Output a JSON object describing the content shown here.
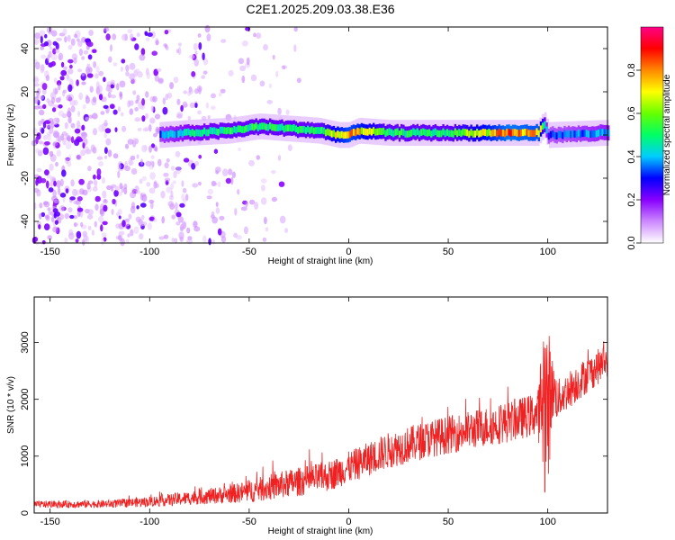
{
  "title": "C2E1.2025.209.03.38.E36",
  "chart_data": [
    {
      "type": "heatmap",
      "title": "",
      "xlabel": "Height of straight line (km)",
      "ylabel": "Frequency (Hz)",
      "xlim": [
        -158,
        130
      ],
      "ylim": [
        -50,
        50
      ],
      "x_ticks": [
        -150,
        -100,
        -50,
        0,
        50,
        100
      ],
      "y_ticks": [
        -40,
        -20,
        0,
        20,
        40
      ],
      "colorbar": {
        "label": "Normalized spectral amplitude",
        "range": [
          0,
          1
        ],
        "ticks": [
          "0.0",
          "0.2",
          "0.4",
          "0.6",
          "0.8"
        ],
        "colormap": [
          "#ffffff",
          "#cc88ff",
          "#8800ff",
          "#0000ff",
          "#00ccff",
          "#00ff66",
          "#66ff00",
          "#ffff00",
          "#ff8800",
          "#ff0000",
          "#ff0088"
        ]
      },
      "noise_region_x": [
        -158,
        -22
      ],
      "band_ridge": {
        "x": [
          -95,
          -80,
          -60,
          -45,
          -30,
          -15,
          -5,
          0,
          5,
          20,
          50,
          80,
          95,
          98,
          100,
          130
        ],
        "freq": [
          0,
          1,
          2,
          4,
          3,
          2,
          0,
          0,
          2,
          1,
          1,
          1,
          1,
          5,
          0,
          1
        ],
        "amplitude": [
          0.35,
          0.45,
          0.5,
          0.5,
          0.5,
          0.5,
          0.7,
          0.75,
          0.7,
          0.5,
          0.5,
          0.8,
          0.75,
          0.5,
          0.3,
          0.4
        ]
      }
    },
    {
      "type": "line",
      "title": "",
      "xlabel": "Height of straight line (km)",
      "ylabel": "SNR (10 * v/v)",
      "xlim": [
        -158,
        130
      ],
      "ylim": [
        0,
        3800
      ],
      "x_ticks": [
        -150,
        -100,
        -50,
        0,
        50,
        100
      ],
      "y_ticks": [
        0,
        1000,
        2000,
        3000
      ],
      "line_color": "#ee2222",
      "envelope": {
        "x": [
          -158,
          -120,
          -100,
          -90,
          -75,
          -60,
          -50,
          -40,
          -30,
          -20,
          -10,
          0,
          10,
          20,
          40,
          60,
          80,
          95,
          98,
          100,
          102,
          105,
          115,
          130
        ],
        "mean": [
          150,
          160,
          200,
          230,
          280,
          330,
          380,
          450,
          520,
          580,
          650,
          800,
          950,
          1100,
          1300,
          1450,
          1600,
          1750,
          2000,
          1800,
          2200,
          2000,
          2300,
          2700
        ],
        "spread": [
          60,
          70,
          90,
          110,
          130,
          160,
          200,
          230,
          250,
          260,
          270,
          280,
          300,
          320,
          330,
          340,
          360,
          380,
          1600,
          1600,
          600,
          350,
          330,
          300
        ]
      }
    }
  ]
}
